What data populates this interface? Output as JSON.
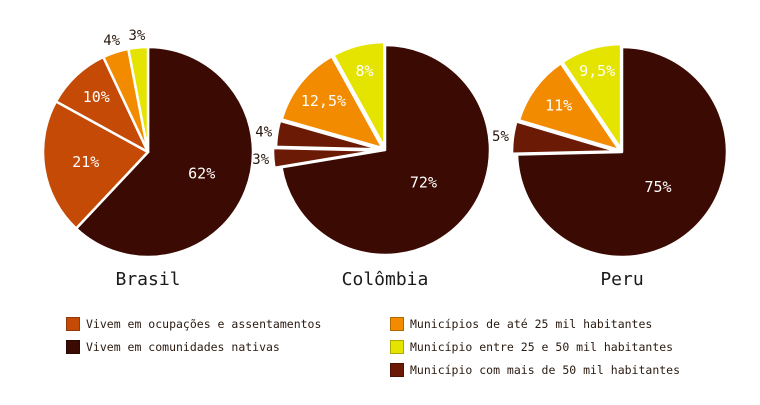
{
  "colors": {
    "ocupacoes": "#c44a06",
    "comunidades": "#3b0a02",
    "ate25": "#f28b00",
    "entre25e50": "#e4e400",
    "mais50": "#6b1a05"
  },
  "legend": {
    "left": [
      {
        "label": "Vivem em ocupações e assentamentos",
        "color_key": "ocupacoes"
      },
      {
        "label": "Vivem em comunidades nativas",
        "color_key": "comunidades"
      }
    ],
    "right": [
      {
        "label": "Municípios de até 25 mil habitantes",
        "color_key": "ate25"
      },
      {
        "label": "Município entre 25 e 50 mil habitantes",
        "color_key": "entre25e50"
      },
      {
        "label": "Município com mais de 50 mil habitantes",
        "color_key": "mais50"
      }
    ]
  },
  "chart_data": [
    {
      "type": "pie",
      "title": "Brasil",
      "slices": [
        {
          "label": "62%",
          "value": 62,
          "color_key": "comunidades"
        },
        {
          "label": "21%",
          "value": 21,
          "color_key": "ocupacoes"
        },
        {
          "label": "10%",
          "value": 10,
          "color_key": "ocupacoes"
        },
        {
          "label": "4%",
          "value": 4,
          "color_key": "ate25"
        },
        {
          "label": "3%",
          "value": 3,
          "color_key": "entre25e50"
        }
      ]
    },
    {
      "type": "pie",
      "title": "Colômbia",
      "slices": [
        {
          "label": "72%",
          "value": 72,
          "color_key": "comunidades"
        },
        {
          "label": "3%",
          "value": 3,
          "color_key": "mais50"
        },
        {
          "label": "4%",
          "value": 4,
          "color_key": "mais50"
        },
        {
          "label": "12,5%",
          "value": 12.5,
          "color_key": "ate25"
        },
        {
          "label": "8%",
          "value": 8,
          "color_key": "entre25e50"
        }
      ]
    },
    {
      "type": "pie",
      "title": "Peru",
      "slices": [
        {
          "label": "75%",
          "value": 75,
          "color_key": "comunidades"
        },
        {
          "label": "5%",
          "value": 5,
          "color_key": "mais50"
        },
        {
          "label": "11%",
          "value": 11,
          "color_key": "ate25"
        },
        {
          "label": "9,5%",
          "value": 9.5,
          "color_key": "entre25e50"
        }
      ]
    }
  ]
}
